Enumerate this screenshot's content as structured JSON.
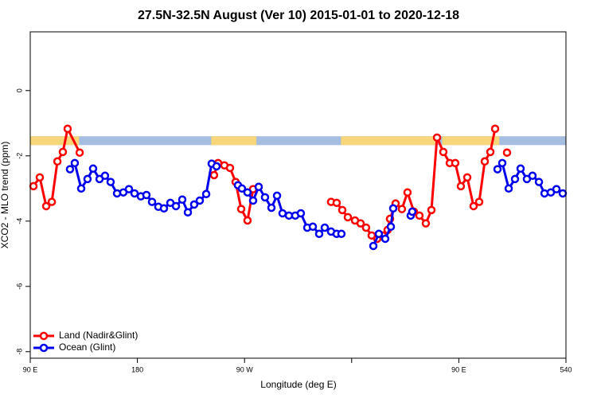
{
  "chart_data": {
    "type": "line",
    "title": "27.5N-32.5N August (Ver 10)   2015-01-01 to 2020-12-18",
    "xlabel": "Longitude (deg E)",
    "ylabel": "XCO2 - MLO trend (ppm)",
    "xlim": [
      90,
      540
    ],
    "ylim": [
      -8.2,
      1.8
    ],
    "xticks": [
      {
        "value": 90,
        "label": "90 E"
      },
      180,
      {
        "value": 270,
        "label": "90 W"
      },
      {
        "value": 360,
        "label": null
      },
      {
        "value": 450,
        "label": "90 E"
      },
      540
    ],
    "yticks": [
      0,
      -2,
      -4,
      -6,
      -8
    ],
    "legend": "bottomleft",
    "mask": {
      "ylim": [
        -1.67,
        -1.4
      ],
      "ocean_color": "#a5bde0",
      "land_color": "#f7d77a",
      "land": [
        [
          90,
          131
        ],
        [
          242,
          280
        ],
        [
          351,
          431
        ],
        [
          436,
          484
        ]
      ]
    },
    "series": [
      {
        "name": "Land (Nadir&Glint)",
        "color": "#ff0000",
        "x": [
          92.7,
          98.0,
          103.4,
          108.1,
          112.8,
          117.4,
          121.4,
          131.5,
          null,
          244.4,
          247.8,
          253.1,
          257.8,
          262.5,
          267.2,
          272.5,
          277.2,
          null,
          342.7,
          347.4,
          352.1,
          356.8,
          362.8,
          367.5,
          372.1,
          376.8,
          381.5,
          386.2,
          390.2,
          392.2,
          396.9,
          402.2,
          406.9,
          412.3,
          416.9,
          422.3,
          427.0,
          431.7,
          437.0,
          442.4,
          447.0,
          451.7,
          457.1,
          462.4,
          467.1,
          471.8,
          476.5,
          480.5,
          null,
          490.5
        ],
        "values": [
          -2.93,
          -2.66,
          -3.54,
          -3.41,
          -2.17,
          -1.88,
          -1.17,
          -1.9,
          null,
          -2.59,
          -2.22,
          -2.29,
          -2.37,
          -2.8,
          -3.63,
          -3.98,
          -3.02,
          null,
          -3.41,
          -3.44,
          -3.66,
          -3.88,
          -3.98,
          -4.07,
          -4.2,
          -4.44,
          -4.54,
          -4.44,
          -4.27,
          -3.93,
          -3.46,
          -3.63,
          -3.12,
          -3.71,
          -3.83,
          -4.07,
          -3.66,
          -1.44,
          -1.88,
          -2.22,
          -2.22,
          -2.93,
          -2.66,
          -3.54,
          -3.41,
          -2.17,
          -1.88,
          -1.17,
          null,
          -1.9
        ]
      },
      {
        "name": "Ocean (Glint)",
        "color": "#0000ee",
        "x": [
          123.4,
          127.4,
          132.8,
          138.1,
          142.8,
          148.2,
          152.8,
          157.5,
          162.9,
          168.2,
          172.9,
          177.6,
          182.9,
          187.6,
          192.3,
          197.6,
          202.3,
          207.7,
          212.4,
          217.7,
          222.4,
          227.7,
          232.4,
          237.8,
          242.4,
          246.5,
          null,
          264.5,
          267.8,
          272.5,
          277.2,
          281.9,
          287.2,
          292.6,
          297.3,
          301.9,
          307.3,
          312.6,
          317.3,
          322.7,
          327.4,
          332.7,
          337.4,
          342.7,
          347.4,
          351.4,
          null,
          378.2,
          382.8,
          388.2,
          392.9,
          394.9,
          null,
          409.6,
          410.9,
          null,
          482.5,
          486.5,
          491.9,
          497.2,
          501.9,
          507.2,
          511.9,
          517.3,
          522.0,
          527.3,
          532.0,
          537.3
        ],
        "values": [
          -2.41,
          -2.22,
          -3.0,
          -2.71,
          -2.39,
          -2.71,
          -2.61,
          -2.8,
          -3.15,
          -3.12,
          -3.02,
          -3.15,
          -3.24,
          -3.2,
          -3.41,
          -3.56,
          -3.61,
          -3.44,
          -3.54,
          -3.34,
          -3.73,
          -3.49,
          -3.37,
          -3.17,
          -2.24,
          -2.32,
          null,
          -2.9,
          -3.0,
          -3.12,
          -3.37,
          -2.95,
          -3.27,
          -3.59,
          -3.22,
          -3.76,
          -3.83,
          -3.83,
          -3.76,
          -4.2,
          -4.17,
          -4.39,
          -4.2,
          -4.32,
          -4.39,
          -4.39,
          null,
          -4.76,
          -4.39,
          -4.54,
          -4.17,
          -3.61,
          null,
          -3.83,
          -3.71,
          null,
          -2.41,
          -2.22,
          -3.0,
          -2.71,
          -2.39,
          -2.71,
          -2.61,
          -2.8,
          -3.15,
          -3.12,
          -3.02,
          -3.15
        ]
      }
    ]
  }
}
